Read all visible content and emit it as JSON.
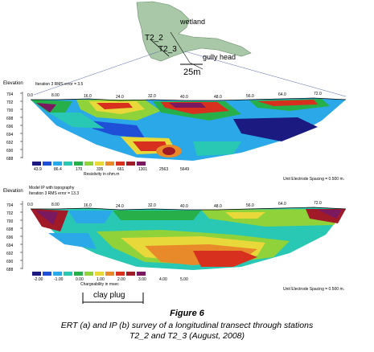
{
  "map": {
    "labels": [
      "wetland",
      "T2_2",
      "T2_3",
      "gully head"
    ],
    "scale_label": "25m"
  },
  "panel_a": {
    "axis_title": "Elevation",
    "subtitle": "Iteration 3 RMS error = 3.5",
    "y_ticks": [
      "704",
      "702",
      "700",
      "698",
      "696",
      "694",
      "692",
      "690",
      "688"
    ],
    "x_ticks": [
      "0.0",
      "8.00",
      "16.0",
      "24.0",
      "32.0",
      "40.0",
      "48.0",
      "56.0",
      "64.0",
      "72.0"
    ],
    "legend_values": [
      "43.9",
      "86.4",
      "170",
      "335",
      "661",
      "1301",
      "2563",
      "5649"
    ],
    "legend_label": "Resistivity in ohm.m",
    "spacing_note": "Unit Electrode Spacing = 0.500 m."
  },
  "panel_b": {
    "axis_title": "Elevation",
    "subtitle_1": "Model IP with topography",
    "subtitle_2": "Iteration 3 RMS error = 13.3",
    "y_ticks": [
      "704",
      "702",
      "700",
      "698",
      "696",
      "694",
      "692",
      "690",
      "688"
    ],
    "x_ticks": [
      "0.0",
      "8.00",
      "16.0",
      "24.0",
      "32.0",
      "40.0",
      "48.0",
      "56.0",
      "64.0",
      "72.0"
    ],
    "legend_values": [
      "-2.00",
      "-1.00",
      "0.00",
      "1.00",
      "2.00",
      "3.00",
      "4.00",
      "5.00"
    ],
    "legend_label": "Chargeability in msec",
    "spacing_note": "Unit Electrode Spacing = 0.500 m."
  },
  "annotation": {
    "clay_plug": "clay plug"
  },
  "figure": {
    "number": "Figure 6",
    "caption_line1": "ERT (a) and IP (b) survey of a longitudinal transect through stations",
    "caption_line2": "T2_2 and T2_3 (August, 2008)"
  },
  "colors": {
    "scale": [
      "#1a1a80",
      "#1f4fd6",
      "#2aa8e8",
      "#28c8b4",
      "#27b04a",
      "#8fd23a",
      "#e8d83a",
      "#e88a2a",
      "#d8301e",
      "#a01a28",
      "#7a1860"
    ]
  }
}
